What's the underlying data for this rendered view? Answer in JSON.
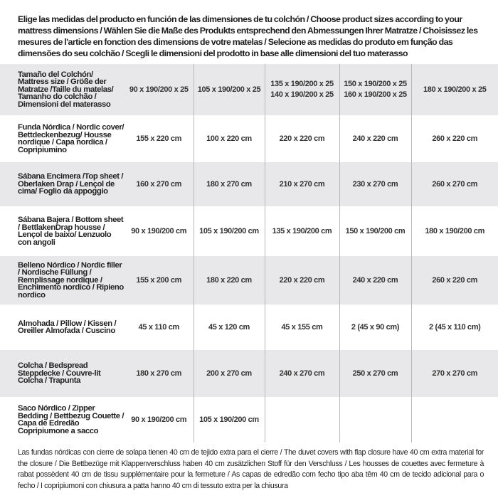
{
  "intro": "Elige las medidas del producto en función de las dimensiones de tu colchón / Choose product sizes according to your mattress dimensions / Wählen Sie die Maße des Produkts entsprechend den Abmessungen Ihrer Matratze / Choisissez les mesures de l'article en fonction des dimensions de votre matelas / Selecione as medidas do produto em função das dimensões do seu colchão / Scegli le dimensioni del prodotto in base alle dimensioni del tuo materasso",
  "table": {
    "header": {
      "label": "Tamaño del Colchón/ Mattress size / Größe der Matratze /Taille du matelas/ Tamanho do colchão / Dimensioni del materasso",
      "sizes": [
        [
          "90 x 190/200 x 25"
        ],
        [
          "105 x 190/200 x 25"
        ],
        [
          "135 x 190/200 x 25",
          "140 x 190/200 x 25"
        ],
        [
          "150 x 190/200 x 25",
          "160 x 190/200 x 25"
        ],
        [
          "180 x 190/200 x 25"
        ]
      ]
    },
    "rows": [
      {
        "label": "Funda Nórdica /  Nordic cover/ Bettdeckenbezug/ Housse nordique  / Capa nordica / Copripiumino",
        "values": [
          "155 x 220 cm",
          "100 x 220 cm",
          "220 x 220 cm",
          "240 x 220 cm",
          "260 x 220 cm"
        ]
      },
      {
        "label": "Sábana Encimera /Top sheet / Oberlaken Drap / Lençol de cima/ Foglio da appoggio",
        "values": [
          "160 x 270 cm",
          "180 x 270 cm",
          "210 x 270 cm",
          "230 x 270 cm",
          "260 x 270 cm"
        ]
      },
      {
        "label": "Sábana Bajera / Bottom sheet / BettlakenDrap housse / Lençol de baixo/ Lenzuolo con angoli",
        "values": [
          "90 x 190/200 cm",
          "105 x 190/200 cm",
          "135 x 190/200 cm",
          "150 x 190/200 cm",
          "180 x 190/200 cm"
        ]
      },
      {
        "label": "Belleno Nórdico / Nordic filler / Nordische Füllung / Remplissage nordique / Enchimento nordico / Ripieno nordico",
        "values": [
          "155 x 200 cm",
          "180 x 220 cm",
          "220 x 220 cm",
          "240 x 220 cm",
          "260 x 220 cm"
        ]
      },
      {
        "label": "Almohada  / Pillow / Kissen / Oreiller Almofada / Cuscino",
        "values": [
          "45 x 110 cm",
          "45 x 120 cm",
          "45 x 155 cm",
          "2 (45 x 90 cm)",
          "2 (45 x 110 cm)"
        ]
      },
      {
        "label": "Colcha / Bedspread Steppdecke / Couvre-lit Colcha / Trapunta",
        "values": [
          "180 x 270 cm",
          "200 x 270 cm",
          "240 x 270 cm",
          "250 x 270 cm",
          "270 x 270 cm"
        ]
      },
      {
        "label": "Saco Nórdico / Zipper Bedding / Bettbezug Couette  / Capa de Edredão Copripiumone a sacco",
        "values": [
          "90 x 190/200 cm",
          "105 x 190/200 cm",
          "",
          "",
          ""
        ]
      }
    ]
  },
  "footnote": "Las fundas nórdicas con cierre de solapa tienen 40 cm de tejido extra para el cierre  / The duvet covers with flap closure have 40 cm extra material for the closure / Die Bettbezüge mit Klappenverschluss haben 40 cm zusätzlichen Stoff für den Verschluss / Les housses de couettes avec fermeture à rabat possèdent 40 cm de tissu supplémentaire pour la fermeture / As capas de edredão com fecho tipo aba têm 40 cm de tecido adicional para o fecho / I copripiumoni con chiusura a patta hanno 40 cm di tessuto extra per la chiusura",
  "colors": {
    "stripe": "#e8e8ea",
    "divider": "#b8b8b8",
    "text": "#2b2b2b"
  }
}
